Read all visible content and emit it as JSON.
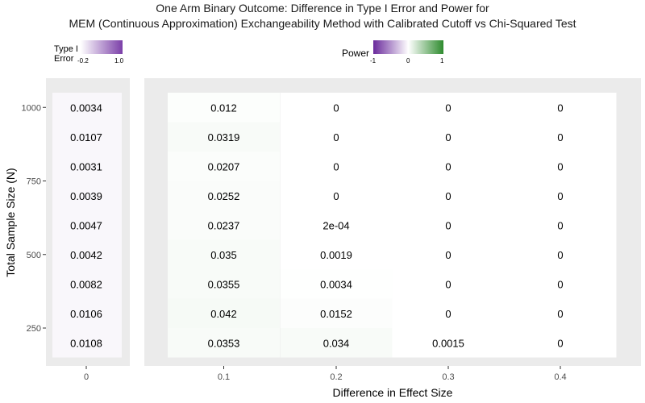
{
  "title_lines": [
    "One Arm Binary Outcome: Difference in Type I Error and Power for",
    "MEM (Continuous Approximation) Exchangeability Method with Calibrated Cutoff vs Chi-Squared Test"
  ],
  "legends": {
    "type1": {
      "title_lines": [
        "Type I",
        "Error"
      ],
      "tick_labels": [
        "-0.2",
        "1.0"
      ],
      "colors": [
        "#ffffff",
        "#7b3fa8"
      ]
    },
    "power": {
      "title": "Power",
      "tick_labels": [
        "-1",
        "0",
        "1"
      ],
      "colors": [
        "#6a2a9c",
        "#ffffff",
        "#2e8b2e"
      ]
    }
  },
  "chart_data": [
    {
      "type": "heatmap",
      "panel": "Type I Error",
      "xlabel": "",
      "ylabel": "Total Sample Size (N)",
      "x_categories": [
        "0"
      ],
      "y_ticks": [
        "250",
        "500",
        "750",
        "1000"
      ],
      "rows": 9,
      "values": [
        [
          "0.0108"
        ],
        [
          "0.0106"
        ],
        [
          "0.0082"
        ],
        [
          "0.0042"
        ],
        [
          "0.0047"
        ],
        [
          "0.0039"
        ],
        [
          "0.0031"
        ],
        [
          "0.0107"
        ],
        [
          "0.0034"
        ]
      ]
    },
    {
      "type": "heatmap",
      "panel": "Power",
      "xlabel": "Difference in Effect Size",
      "ylabel": "",
      "x_categories": [
        "0.1",
        "0.2",
        "0.3",
        "0.4"
      ],
      "rows": 9,
      "values": [
        [
          "0.0353",
          "0.034",
          "0.0015",
          "0"
        ],
        [
          "0.042",
          "0.0152",
          "0",
          "0"
        ],
        [
          "0.0355",
          "0.0034",
          "0",
          "0"
        ],
        [
          "0.035",
          "0.0019",
          "0",
          "0"
        ],
        [
          "0.0237",
          "2e-04",
          "0",
          "0"
        ],
        [
          "0.0252",
          "0",
          "0",
          "0"
        ],
        [
          "0.0207",
          "0",
          "0",
          "0"
        ],
        [
          "0.0319",
          "0",
          "0",
          "0"
        ],
        [
          "0.012",
          "0",
          "0",
          "0"
        ]
      ]
    }
  ],
  "x_axis_title": "Difference in Effect Size",
  "y_axis_title": "Total Sample Size (N)"
}
